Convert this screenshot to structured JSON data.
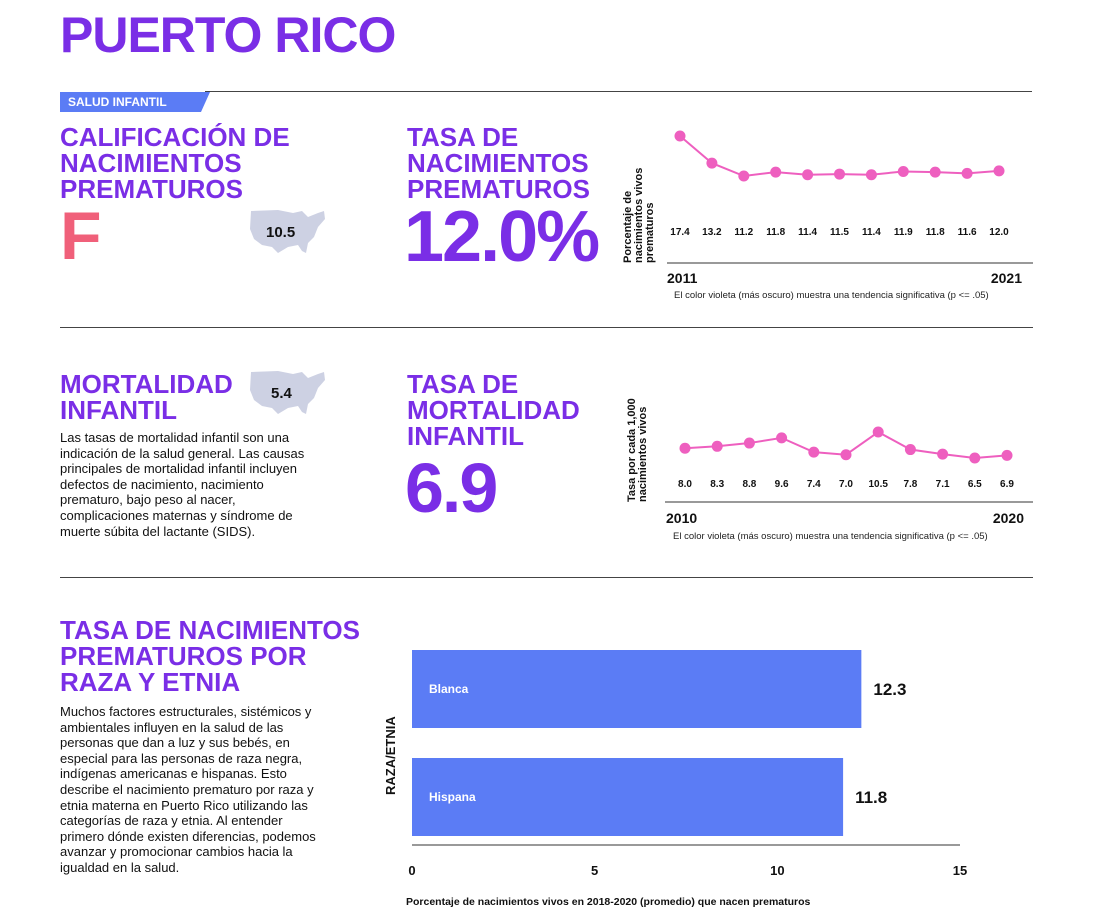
{
  "page": {
    "title": "PUERTO RICO",
    "section_tag": "SALUD INFANTIL"
  },
  "grade": {
    "heading": [
      "CALIFICACIÓN DE",
      "NACIMIENTOS",
      "PREMATUROS"
    ],
    "letter": "F",
    "us_value": "10.5",
    "colors": {
      "letter": "#f0607a",
      "map": "#cdd1e3"
    }
  },
  "preterm_rate": {
    "heading": [
      "TASA DE",
      "NACIMIENTOS",
      "PREMATUROS"
    ],
    "value": "12.0%",
    "note": "El color violeta (más oscuro) muestra una tendencia significativa (p <= .05)"
  },
  "infant_mortality": {
    "heading": [
      "MORTALIDAD",
      "INFANTIL"
    ],
    "us_value": "5.4",
    "description": "Las tasas de mortalidad infantil son una indicación de la salud general. Las causas principales de mortalidad infantil incluyen defectos de nacimiento, nacimiento prematuro, bajo peso al nacer, complicaciones maternas y síndrome de muerte súbita del lactante (SIDS).",
    "rate_heading": [
      "TASA DE",
      "MORTALIDAD",
      "INFANTIL"
    ],
    "value": "6.9",
    "note": "El color violeta (más oscuro) muestra una tendencia significativa (p <= .05)"
  },
  "race": {
    "heading": [
      "TASA DE NACIMIENTOS",
      "PREMATUROS POR",
      "RAZA Y ETNIA"
    ],
    "description": "Muchos factores estructurales, sistémicos y ambientales influyen en la salud de las personas que dan a luz y sus bebés, en especial para las personas de raza negra, indígenas americanas e hispanas. Esto describe el nacimiento prematuro por raza y etnia materna en Puerto Rico utilizando las categorías de raza y etnia. Al entender primero dónde existen diferencias, podemos avanzar y promocionar cambios hacia la igualdad en la salud."
  },
  "chart_data": [
    {
      "type": "line",
      "ylabel": "Porcentaje de nacimientos vivos prematuros",
      "x_start_label": "2011",
      "x_end_label": "2021",
      "values": [
        17.4,
        13.2,
        11.2,
        11.8,
        11.4,
        11.5,
        11.4,
        11.9,
        11.8,
        11.6,
        12.0
      ],
      "value_labels": [
        "17.4",
        "13.2",
        "11.2",
        "11.8",
        "11.4",
        "11.5",
        "11.4",
        "11.9",
        "11.8",
        "11.6",
        "12.0"
      ],
      "color": "#ee5fbf",
      "grid": false
    },
    {
      "type": "line",
      "ylabel": "Tasa por cada 1,000 nacimientos vivos",
      "x_start_label": "2010",
      "x_end_label": "2020",
      "values": [
        8.0,
        8.3,
        8.8,
        9.6,
        7.4,
        7.0,
        10.5,
        7.8,
        7.1,
        6.5,
        6.9
      ],
      "value_labels": [
        "8.0",
        "8.3",
        "8.8",
        "9.6",
        "7.4",
        "7.0",
        "10.5",
        "7.8",
        "7.1",
        "6.5",
        "6.9"
      ],
      "color": "#ee5fbf",
      "grid": false
    },
    {
      "type": "bar",
      "orientation": "horizontal",
      "ylabel": "RAZA/ETNIA",
      "xlabel": "Porcentaje de nacimientos vivos en 2018-2020 (promedio) que nacen prematuros",
      "categories": [
        "Blanca",
        "Hispana"
      ],
      "values": [
        12.3,
        11.8
      ],
      "value_labels": [
        "12.3",
        "11.8"
      ],
      "xlim": [
        0,
        15
      ],
      "ticks": [
        "0",
        "5",
        "10",
        "15"
      ],
      "color": "#5b7cf5",
      "grid": false
    }
  ]
}
